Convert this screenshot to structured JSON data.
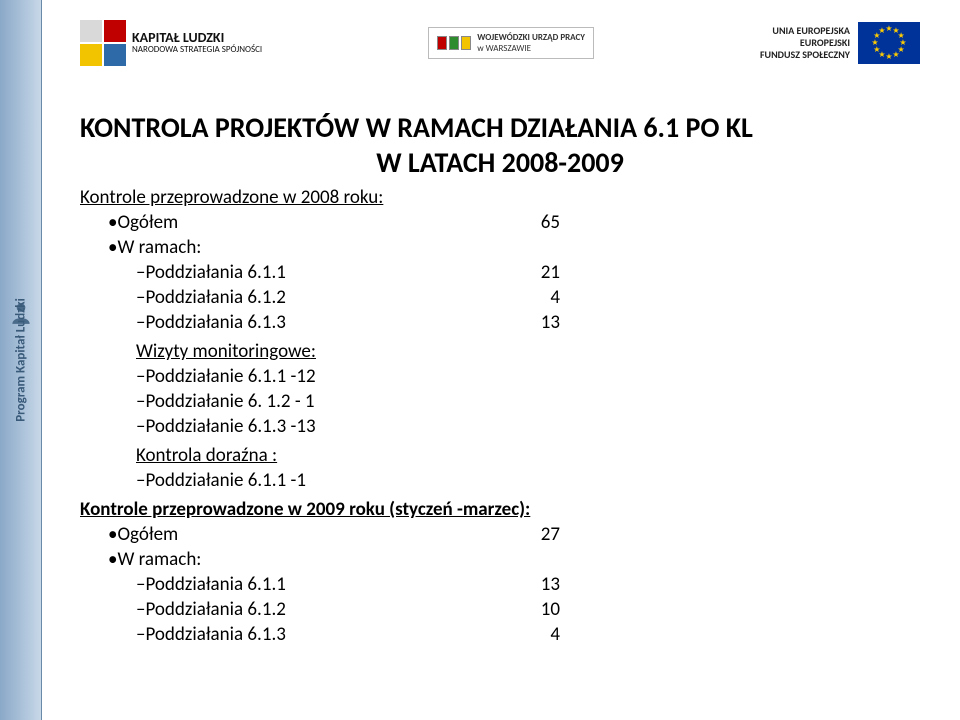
{
  "leftbar": {
    "text": "Program Kapitał Ludzki"
  },
  "header": {
    "kl": {
      "title": "KAPITAŁ LUDZKI",
      "subtitle": "NARODOWA STRATEGIA SPÓJNOŚCI",
      "colors": [
        "#d9d9d9",
        "#c00000",
        "#f2c400",
        "#2e6aa8"
      ]
    },
    "wup": {
      "line1": "WOJEWÓDZKI URZĄD PRACY",
      "line2": "w WARSZAWIE",
      "flag_colors": [
        "#c00000",
        "#2e8b2e",
        "#f2c400"
      ]
    },
    "eu": {
      "line1": "UNIA EUROPEJSKA",
      "line2": "EUROPEJSKI",
      "line3": "FUNDUSZ SPOŁECZNY",
      "flag_bg": "#003399",
      "star_color": "#ffcc00"
    }
  },
  "title_line1": "KONTROLA PROJEKTÓW W RAMACH DZIAŁANIA 6.1 PO KL",
  "title_line2": "W LATACH 2008-2009",
  "s1": {
    "heading": "Kontrole przeprowadzone w 2008 roku:",
    "total_label": "Ogółem",
    "total_val": "65",
    "ramach": "W ramach:",
    "rows": [
      {
        "label": "Poddziałania 6.1.1",
        "val": "21"
      },
      {
        "label": "Poddziałania 6.1.2",
        "val": "4"
      },
      {
        "label": "Poddziałania 6.1.3",
        "val": "13"
      }
    ]
  },
  "s2": {
    "heading": "Wizyty monitoringowe",
    "rows": [
      {
        "label": "Poddziałanie 6.1.1 -12"
      },
      {
        "label": "Poddziałanie 6. 1.2 - 1"
      },
      {
        "label": "Poddziałanie 6.1.3 -13"
      }
    ]
  },
  "s3": {
    "heading": "Kontrola doraźna :",
    "rows": [
      {
        "label": "Poddziałanie 6.1.1 -1"
      }
    ]
  },
  "s4": {
    "heading": "Kontrole przeprowadzone w 2009 roku (styczeń -marzec):",
    "total_label": "Ogółem",
    "total_val": "27",
    "ramach": "W ramach:",
    "rows": [
      {
        "label": "Poddziałania 6.1.1",
        "val": "13"
      },
      {
        "label": "Poddziałania 6.1.2",
        "val": "10"
      },
      {
        "label": "Poddziałania 6.1.3",
        "val": "4"
      }
    ]
  }
}
